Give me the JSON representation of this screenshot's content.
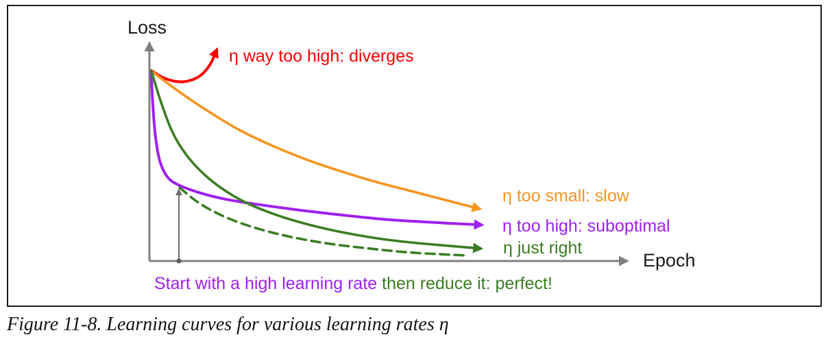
{
  "figure": {
    "caption": "Figure 11-8. Learning curves for various learning rates η"
  },
  "chart": {
    "y_axis_label": "Loss",
    "x_axis_label": "Epoch",
    "labels": {
      "diverges": "η way too high: diverges",
      "too_small": "η too small: slow",
      "suboptimal": "η too high: suboptimal",
      "just_right": "η just right",
      "strategy_part1": "Start with a high learning rate ",
      "strategy_part2": "then reduce it: perfect!"
    },
    "colors": {
      "diverges": "#ff0000",
      "too_small": "#f7941e",
      "suboptimal": "#a020f0",
      "just_right": "#3b7d23",
      "axis": "#808080",
      "text": "#1a1a1a"
    }
  },
  "chart_data": {
    "type": "line",
    "title": "Learning curves for various learning rates η",
    "xlabel": "Epoch",
    "ylabel": "Loss",
    "axis_note": "qualitative sketch, no tick values; x normalized 0-1 over shown epoch range, y normalized with 1 = initial loss and 0 = x-axis",
    "grid": false,
    "legend_position": "inline colored labels at right end of each curve",
    "annotations": [
      {
        "type": "vertical-arrow",
        "color": "#808080",
        "x": 0.059,
        "y_from": 0.0,
        "y_to": 0.39,
        "meaning": "marks point on the purple curve where the dashed green curve (reduced learning rate) begins"
      }
    ],
    "series": [
      {
        "key": "diverges",
        "name": "η way too high: diverges",
        "color": "#ff0000",
        "marker": "red",
        "arrow": true,
        "dashed": false,
        "width": 4,
        "x": [
          0.001,
          0.022,
          0.046,
          0.072,
          0.099,
          0.116,
          0.128,
          0.135
        ],
        "y": [
          1.0,
          0.968,
          0.946,
          0.942,
          0.964,
          1.0,
          1.043,
          1.083
        ]
      },
      {
        "key": "too_small",
        "name": "η too small: slow",
        "color": "#f7941e",
        "marker": "orange",
        "arrow": true,
        "dashed": false,
        "width": 3.6,
        "x": [
          0.0,
          0.058,
          0.116,
          0.188,
          0.261,
          0.333,
          0.406,
          0.478,
          0.551,
          0.623,
          0.684
        ],
        "y": [
          1.0,
          0.892,
          0.795,
          0.687,
          0.601,
          0.529,
          0.468,
          0.414,
          0.367,
          0.32,
          0.281
        ]
      },
      {
        "key": "suboptimal",
        "name": "η too high: suboptimal",
        "color": "#a020f0",
        "marker": "purple",
        "arrow": true,
        "dashed": false,
        "width": 4,
        "x": [
          0.001,
          0.004,
          0.01,
          0.02,
          0.036,
          0.059,
          0.101,
          0.159,
          0.232,
          0.319,
          0.406,
          0.493,
          0.58,
          0.688
        ],
        "y": [
          1.0,
          0.831,
          0.651,
          0.518,
          0.439,
          0.399,
          0.36,
          0.324,
          0.295,
          0.266,
          0.241,
          0.219,
          0.205,
          0.191
        ]
      },
      {
        "key": "just_right",
        "name": "η just right",
        "color": "#3b7d23",
        "marker": "green",
        "arrow": true,
        "dashed": false,
        "width": 3.6,
        "x": [
          0.001,
          0.022,
          0.046,
          0.075,
          0.109,
          0.148,
          0.196,
          0.254,
          0.319,
          0.391,
          0.471,
          0.551,
          0.686
        ],
        "y": [
          1.0,
          0.831,
          0.676,
          0.558,
          0.464,
          0.385,
          0.313,
          0.252,
          0.201,
          0.158,
          0.122,
          0.097,
          0.068
        ]
      },
      {
        "key": "start_high_then_reduce",
        "name": "start with a high learning rate then reduce it: perfect!",
        "color": "#3b7d23",
        "marker": "green",
        "arrow": false,
        "dashed": true,
        "width": 3.6,
        "x": [
          0.061,
          0.101,
          0.145,
          0.196,
          0.254,
          0.319,
          0.391,
          0.464,
          0.536,
          0.609,
          0.667
        ],
        "y": [
          0.385,
          0.306,
          0.245,
          0.194,
          0.151,
          0.115,
          0.086,
          0.065,
          0.047,
          0.036,
          0.029
        ]
      }
    ]
  }
}
